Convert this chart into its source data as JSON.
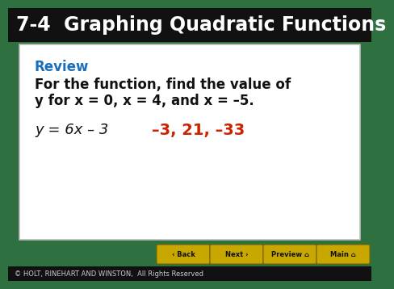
{
  "title": "7-4  Graphing Quadratic Functions",
  "title_color": "#ffffff",
  "header_bg_color": "#111111",
  "header_fontsize": 17,
  "review_label": "Review",
  "review_color": "#1a6fba",
  "review_fontsize": 11,
  "problem_text_line1": "For the function, find the value of",
  "problem_text_line2": "y for x = 0, x = 4, and x = –5.",
  "problem_fontsize": 11,
  "function_text": "y = 6x – 3",
  "function_fontsize": 11,
  "answer_text": "–3, 21, –33",
  "answer_color": "#cc2200",
  "answer_fontsize": 12,
  "white_box_bg": "#ffffff",
  "outer_bg": "#2e7040",
  "footer_bg": "#111111",
  "footer_text": "© HOLT, RINEHART AND WINSTON,  All Rights Reserved",
  "footer_color": "#cccccc",
  "footer_fontsize": 6,
  "nav_buttons": [
    "‹ Back",
    "Next ›",
    "Preview ⌂",
    "Main ⌂"
  ],
  "nav_bg": "#c8a800",
  "nav_color": "#111111"
}
